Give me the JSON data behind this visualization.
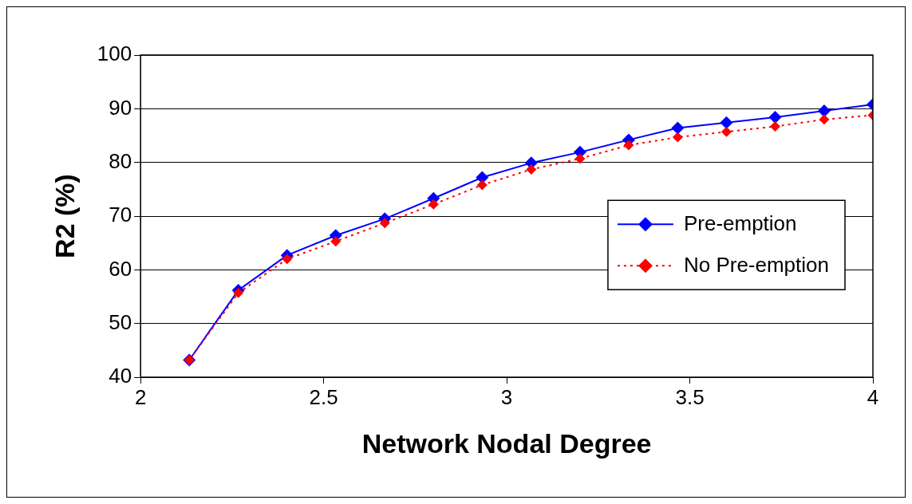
{
  "chart_data": {
    "type": "line",
    "xlabel": "Network Nodal Degree",
    "ylabel": "R2 (%)",
    "x": [
      2.133,
      2.267,
      2.4,
      2.533,
      2.667,
      2.8,
      2.933,
      3.067,
      3.2,
      3.333,
      3.467,
      3.6,
      3.733,
      3.867,
      4.0
    ],
    "xlim": [
      2,
      4
    ],
    "xticks": [
      2,
      2.5,
      3,
      3.5,
      4
    ],
    "ylim": [
      40,
      100
    ],
    "yticks": [
      40,
      50,
      60,
      70,
      80,
      90,
      100
    ],
    "grid": "y",
    "legend": "right",
    "marker": "diamond",
    "series": [
      {
        "name": "Pre-emption",
        "color": "#0000ff",
        "line_style": "solid",
        "values": [
          43.2,
          56.2,
          62.7,
          66.4,
          69.5,
          73.3,
          77.2,
          79.9,
          81.9,
          84.2,
          86.4,
          87.4,
          88.4,
          89.6,
          90.8
        ]
      },
      {
        "name": "No Pre-emption",
        "color": "#ff0000",
        "line_style": "dotted",
        "values": [
          43.2,
          55.7,
          62,
          65.3,
          68.7,
          72.2,
          75.8,
          78.7,
          80.7,
          83.2,
          84.7,
          85.7,
          86.7,
          88,
          88.8
        ]
      }
    ]
  }
}
